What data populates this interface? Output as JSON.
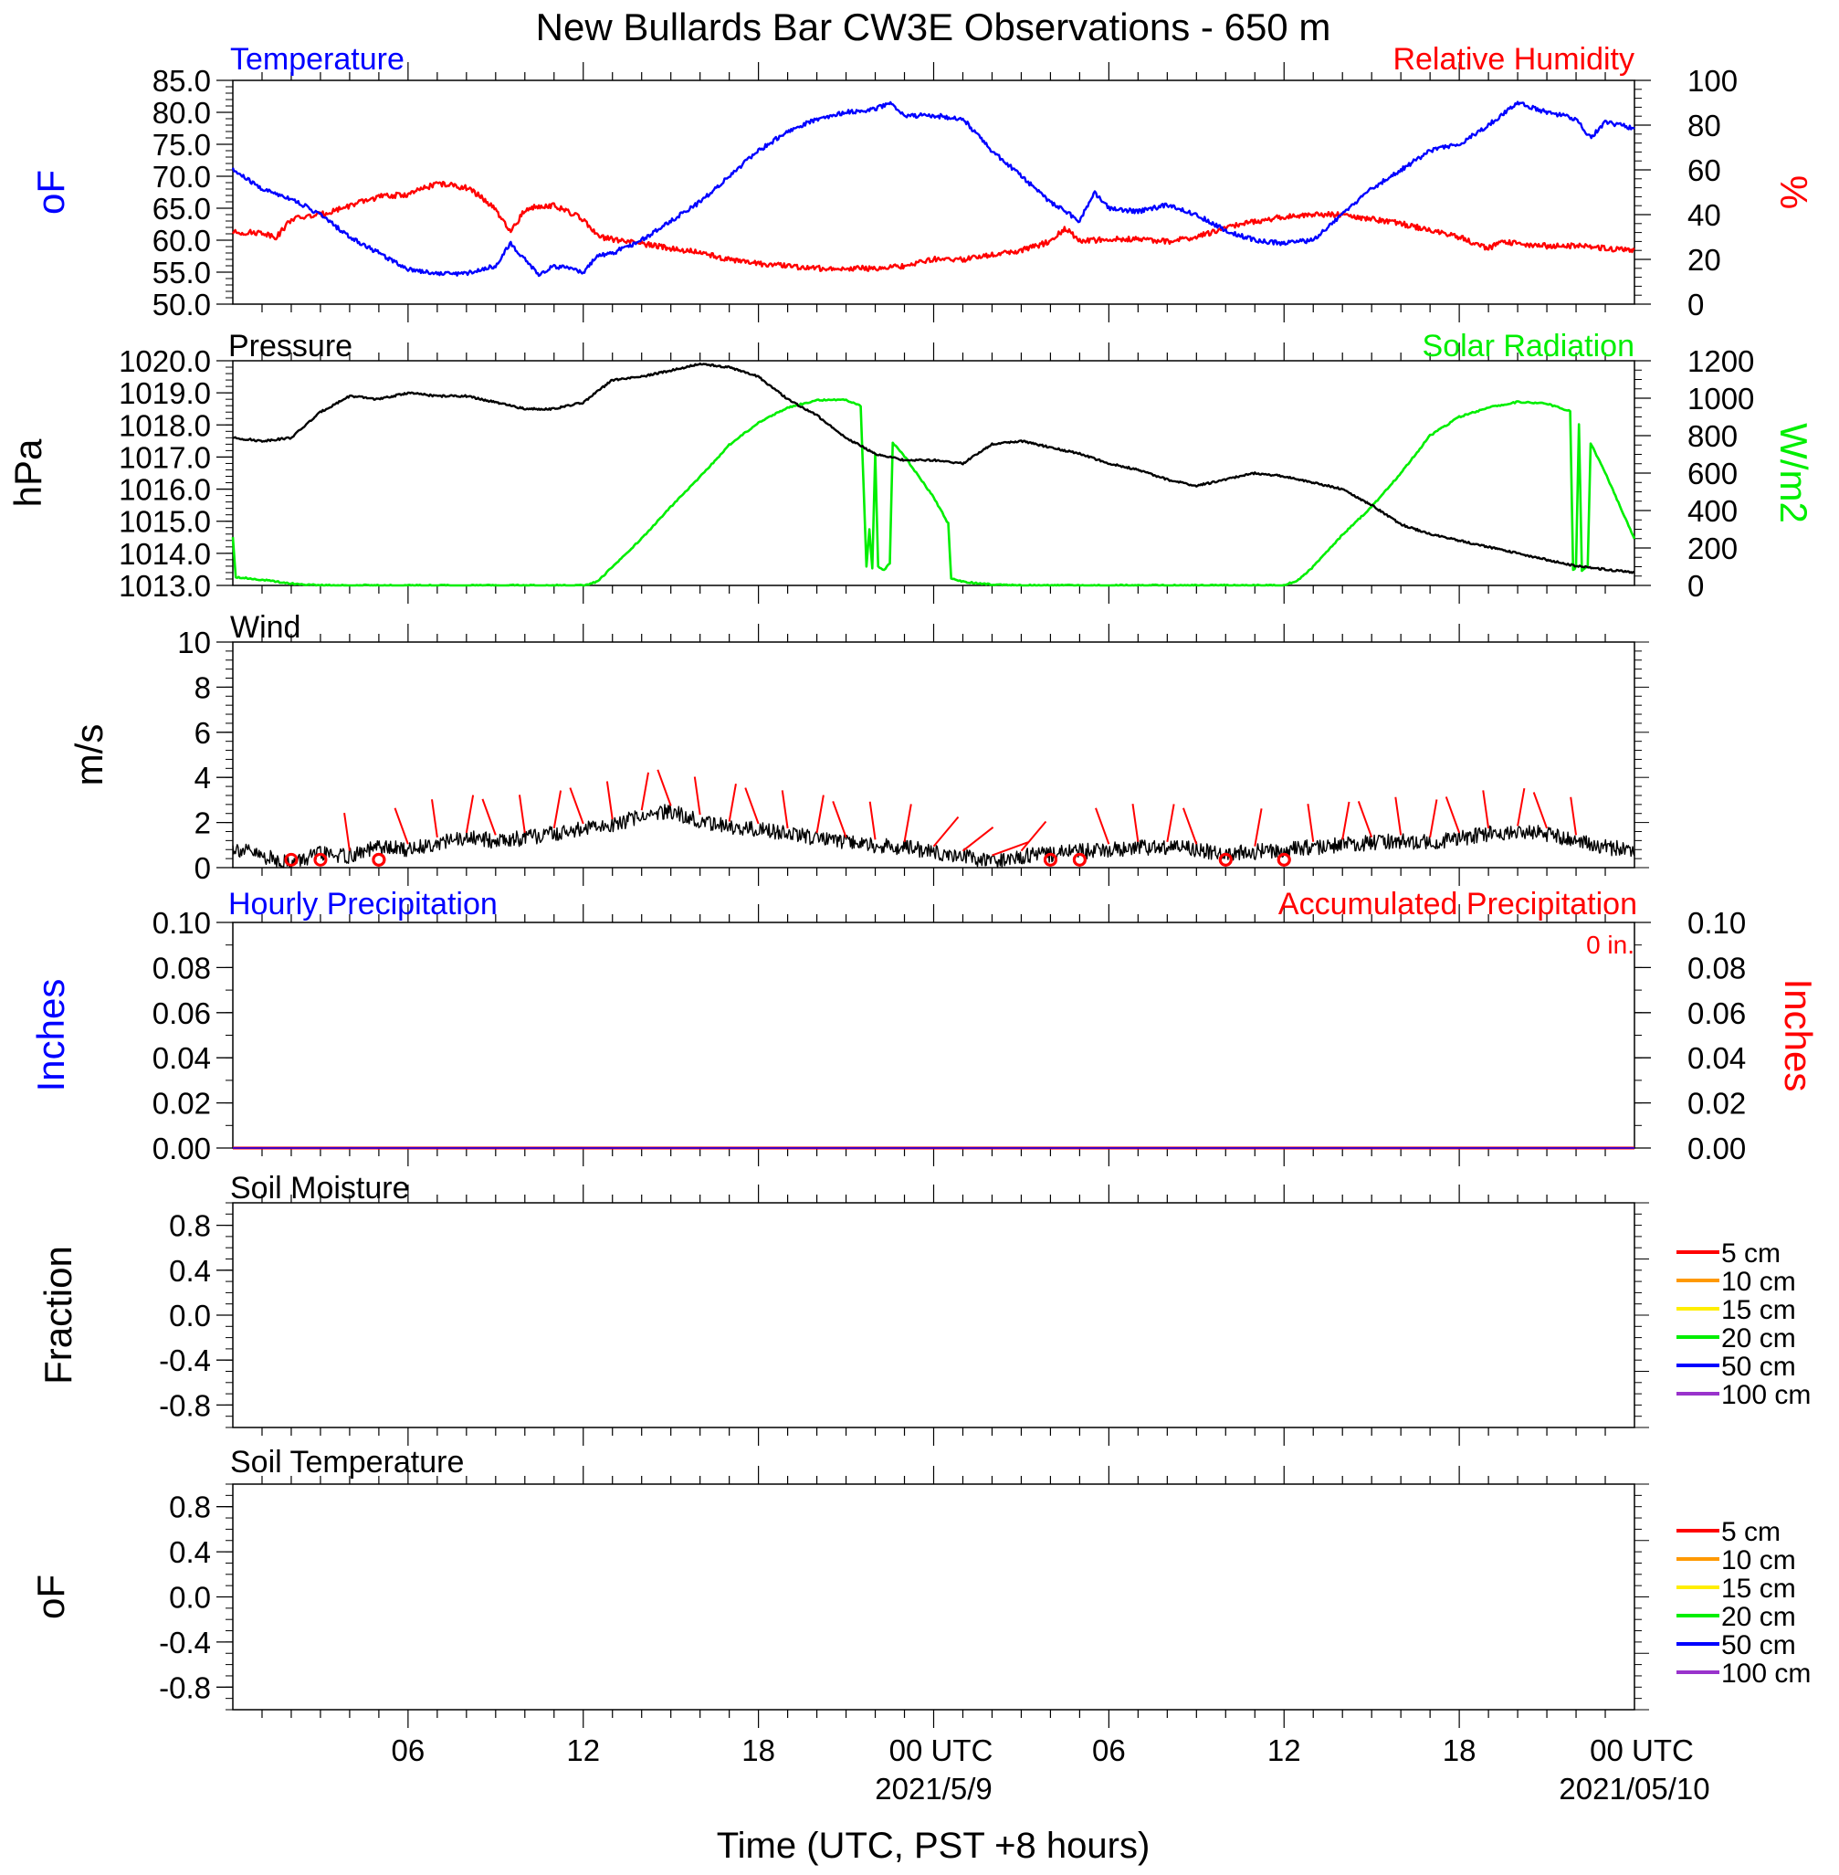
{
  "title": "New Bullards Bar CW3E Observations - 650 m",
  "xaxis": {
    "label": "Time (UTC, PST +8 hours)",
    "ticks": [
      "06",
      "12",
      "18",
      "00 UTC",
      "06",
      "12",
      "18",
      "00 UTC"
    ],
    "date_labels": [
      "2021/5/9",
      "2021/05/10"
    ]
  },
  "colors": {
    "temperature": "#0000ff",
    "humidity": "#ff0000",
    "pressure": "#000000",
    "solar": "#00ee00",
    "wind": "#000000",
    "barb": "#ff0000",
    "hourly_precip": "#0000ff",
    "accum_precip": "#ff0000"
  },
  "panels": {
    "temp_rh": {
      "left_label": "Temperature",
      "right_label": "Relative Humidity",
      "left_unit": "oF",
      "right_unit": "%",
      "left_ticks": [
        "85.0",
        "80.0",
        "75.0",
        "70.0",
        "65.0",
        "60.0",
        "55.0",
        "50.0"
      ],
      "right_ticks": [
        "100",
        "80",
        "60",
        "40",
        "20",
        "0"
      ]
    },
    "pressure_solar": {
      "left_label": "Pressure",
      "right_label": "Solar Radiation",
      "left_unit": "hPa",
      "right_unit": "W/m2",
      "left_ticks": [
        "1020.0",
        "1019.0",
        "1018.0",
        "1017.0",
        "1016.0",
        "1015.0",
        "1014.0",
        "1013.0"
      ],
      "right_ticks": [
        "1200",
        "1000",
        "800",
        "600",
        "400",
        "200",
        "0"
      ]
    },
    "wind": {
      "left_label": "Wind",
      "left_unit": "m/s",
      "left_ticks": [
        "10",
        "8",
        "6",
        "4",
        "2",
        "0"
      ]
    },
    "precip": {
      "left_label": "Hourly Precipitation",
      "right_label": "Accumulated Precipitation",
      "accum_note": "0 in.",
      "left_unit": "Inches",
      "right_unit": "Inches",
      "left_ticks": [
        "0.10",
        "0.08",
        "0.06",
        "0.04",
        "0.02",
        "0.00"
      ],
      "right_ticks": [
        "0.10",
        "0.08",
        "0.06",
        "0.04",
        "0.02",
        "0.00"
      ]
    },
    "soil_moisture": {
      "left_label": "Soil Moisture",
      "left_unit": "Fraction",
      "left_ticks": [
        "0.8",
        "0.4",
        "0.0",
        "-0.4",
        "-0.8"
      ],
      "legend": [
        {
          "label": "5 cm",
          "color": "#ff0000"
        },
        {
          "label": "10 cm",
          "color": "#ff9900"
        },
        {
          "label": "15 cm",
          "color": "#ffee00"
        },
        {
          "label": "20 cm",
          "color": "#00ee00"
        },
        {
          "label": "50 cm",
          "color": "#0000ff"
        },
        {
          "label": "100 cm",
          "color": "#9933cc"
        }
      ]
    },
    "soil_temp": {
      "left_label": "Soil Temperature",
      "left_unit": "oF",
      "left_ticks": [
        "0.8",
        "0.4",
        "0.0",
        "-0.4",
        "-0.8"
      ],
      "legend": [
        {
          "label": "5 cm",
          "color": "#ff0000"
        },
        {
          "label": "10 cm",
          "color": "#ff9900"
        },
        {
          "label": "15 cm",
          "color": "#ffee00"
        },
        {
          "label": "20 cm",
          "color": "#00ee00"
        },
        {
          "label": "50 cm",
          "color": "#0000ff"
        },
        {
          "label": "100 cm",
          "color": "#9933cc"
        }
      ]
    }
  },
  "chart_data": {
    "type": "line",
    "x_hours_utc": "2021-05-08 00 UTC to 2021-05-10 00 UTC",
    "temperature_F": [
      [
        0,
        71
      ],
      [
        1,
        68
      ],
      [
        2,
        66.5
      ],
      [
        3,
        64
      ],
      [
        4,
        60.5
      ],
      [
        5,
        58
      ],
      [
        6,
        55.5
      ],
      [
        7,
        54.8
      ],
      [
        8,
        54.8
      ],
      [
        9,
        56
      ],
      [
        9.5,
        59.5
      ],
      [
        10,
        57
      ],
      [
        10.5,
        54.5
      ],
      [
        11,
        56
      ],
      [
        12,
        55
      ],
      [
        12.5,
        57.5
      ],
      [
        13,
        58
      ],
      [
        14,
        60
      ],
      [
        15,
        63
      ],
      [
        16,
        66
      ],
      [
        17,
        70
      ],
      [
        18,
        74
      ],
      [
        19,
        77
      ],
      [
        20,
        79
      ],
      [
        21,
        80
      ],
      [
        22,
        80.5
      ],
      [
        22.5,
        81.5
      ],
      [
        23,
        79.5
      ],
      [
        24,
        79.5
      ],
      [
        25,
        79
      ],
      [
        26,
        74
      ],
      [
        27,
        70
      ],
      [
        28,
        66
      ],
      [
        29,
        63
      ],
      [
        29.5,
        67.5
      ],
      [
        30,
        65
      ],
      [
        31,
        64.5
      ],
      [
        32,
        65.5
      ],
      [
        33,
        64
      ],
      [
        34,
        61.5
      ],
      [
        35,
        60
      ],
      [
        36,
        59.5
      ],
      [
        37,
        60
      ],
      [
        38,
        64
      ],
      [
        39,
        68
      ],
      [
        40,
        71
      ],
      [
        41,
        74
      ],
      [
        42,
        75
      ],
      [
        43,
        78
      ],
      [
        44,
        81.5
      ],
      [
        45,
        80
      ],
      [
        46,
        79
      ],
      [
        46.5,
        76
      ],
      [
        47,
        78.5
      ],
      [
        48,
        77.5
      ]
    ],
    "relative_humidity_pct": [
      [
        0,
        32
      ],
      [
        1,
        32
      ],
      [
        1.5,
        30
      ],
      [
        2,
        38
      ],
      [
        3,
        40
      ],
      [
        4,
        44
      ],
      [
        5,
        48
      ],
      [
        6,
        49
      ],
      [
        7,
        54
      ],
      [
        8,
        52
      ],
      [
        8.5,
        48
      ],
      [
        9,
        42
      ],
      [
        9.5,
        32
      ],
      [
        10,
        42
      ],
      [
        10.5,
        44
      ],
      [
        11,
        44
      ],
      [
        12,
        38
      ],
      [
        12.5,
        30
      ],
      [
        13,
        29
      ],
      [
        14,
        27
      ],
      [
        15,
        25
      ],
      [
        16,
        23
      ],
      [
        17,
        20
      ],
      [
        18,
        18
      ],
      [
        19,
        17
      ],
      [
        20,
        16
      ],
      [
        21,
        16
      ],
      [
        22,
        16
      ],
      [
        23,
        17
      ],
      [
        24,
        20
      ],
      [
        25,
        20
      ],
      [
        26,
        22
      ],
      [
        27,
        24
      ],
      [
        28,
        28
      ],
      [
        28.5,
        34
      ],
      [
        29,
        28
      ],
      [
        30,
        29
      ],
      [
        31,
        29
      ],
      [
        32,
        28
      ],
      [
        33,
        30
      ],
      [
        34,
        34
      ],
      [
        35,
        37
      ],
      [
        36,
        39
      ],
      [
        37,
        40
      ],
      [
        38,
        40
      ],
      [
        39,
        38
      ],
      [
        40,
        36
      ],
      [
        41,
        33
      ],
      [
        42,
        30
      ],
      [
        43,
        25
      ],
      [
        43.5,
        28
      ],
      [
        44,
        27
      ],
      [
        45,
        26
      ],
      [
        46,
        26
      ],
      [
        47,
        25
      ],
      [
        48,
        24
      ]
    ],
    "pressure_hPa": [
      [
        0,
        1017.6
      ],
      [
        1,
        1017.5
      ],
      [
        2,
        1017.6
      ],
      [
        3,
        1018.4
      ],
      [
        4,
        1018.9
      ],
      [
        5,
        1018.8
      ],
      [
        6,
        1019.0
      ],
      [
        7,
        1018.9
      ],
      [
        8,
        1018.9
      ],
      [
        9,
        1018.7
      ],
      [
        10,
        1018.5
      ],
      [
        11,
        1018.5
      ],
      [
        12,
        1018.7
      ],
      [
        13,
        1019.4
      ],
      [
        14,
        1019.5
      ],
      [
        15,
        1019.7
      ],
      [
        16,
        1019.9
      ],
      [
        17,
        1019.8
      ],
      [
        18,
        1019.5
      ],
      [
        19,
        1018.8
      ],
      [
        20,
        1018.3
      ],
      [
        21,
        1017.6
      ],
      [
        22,
        1017.1
      ],
      [
        23,
        1016.9
      ],
      [
        24,
        1016.9
      ],
      [
        25,
        1016.8
      ],
      [
        26,
        1017.4
      ],
      [
        27,
        1017.5
      ],
      [
        28,
        1017.3
      ],
      [
        29,
        1017.1
      ],
      [
        30,
        1016.8
      ],
      [
        31,
        1016.6
      ],
      [
        32,
        1016.3
      ],
      [
        33,
        1016.1
      ],
      [
        34,
        1016.3
      ],
      [
        35,
        1016.5
      ],
      [
        36,
        1016.4
      ],
      [
        37,
        1016.2
      ],
      [
        38,
        1016.0
      ],
      [
        39,
        1015.5
      ],
      [
        40,
        1014.9
      ],
      [
        41,
        1014.6
      ],
      [
        42,
        1014.4
      ],
      [
        43,
        1014.2
      ],
      [
        44,
        1014.0
      ],
      [
        45,
        1013.8
      ],
      [
        46,
        1013.6
      ],
      [
        47,
        1013.5
      ],
      [
        48,
        1013.4
      ]
    ],
    "solar_radiation_Wm2": [
      [
        0,
        260
      ],
      [
        0.1,
        45
      ],
      [
        1,
        30
      ],
      [
        2,
        10
      ],
      [
        3,
        0
      ],
      [
        12,
        0
      ],
      [
        12.5,
        20
      ],
      [
        13,
        100
      ],
      [
        14,
        250
      ],
      [
        15,
        420
      ],
      [
        16,
        580
      ],
      [
        17,
        750
      ],
      [
        18,
        870
      ],
      [
        19,
        950
      ],
      [
        20,
        990
      ],
      [
        21,
        990
      ],
      [
        21.5,
        960
      ],
      [
        21.7,
        100
      ],
      [
        21.8,
        300
      ],
      [
        21.9,
        90
      ],
      [
        22,
        700
      ],
      [
        22.1,
        100
      ],
      [
        22.3,
        80
      ],
      [
        22.5,
        120
      ],
      [
        22.6,
        760
      ],
      [
        23,
        690
      ],
      [
        24,
        470
      ],
      [
        24.5,
        330
      ],
      [
        24.6,
        40
      ],
      [
        25,
        20
      ],
      [
        26,
        5
      ],
      [
        27,
        0
      ],
      [
        36,
        0
      ],
      [
        36.5,
        30
      ],
      [
        37,
        100
      ],
      [
        38,
        270
      ],
      [
        39,
        420
      ],
      [
        40,
        600
      ],
      [
        41,
        800
      ],
      [
        42,
        900
      ],
      [
        43,
        950
      ],
      [
        44,
        980
      ],
      [
        45,
        970
      ],
      [
        45.8,
        930
      ],
      [
        45.9,
        80
      ],
      [
        46,
        100
      ],
      [
        46.1,
        860
      ],
      [
        46.2,
        80
      ],
      [
        46.4,
        100
      ],
      [
        46.5,
        760
      ],
      [
        47,
        600
      ],
      [
        48,
        250
      ]
    ],
    "wind_speed_ms": [
      [
        0,
        0.9
      ],
      [
        1,
        0.5
      ],
      [
        2,
        0.2
      ],
      [
        3,
        0.6
      ],
      [
        4,
        0.5
      ],
      [
        5,
        0.9
      ],
      [
        6,
        0.8
      ],
      [
        7,
        1.1
      ],
      [
        8,
        1.3
      ],
      [
        9,
        1.2
      ],
      [
        10,
        1.3
      ],
      [
        11,
        1.5
      ],
      [
        12,
        1.7
      ],
      [
        13,
        1.9
      ],
      [
        14,
        2.3
      ],
      [
        15,
        2.5
      ],
      [
        16,
        2.1
      ],
      [
        17,
        1.8
      ],
      [
        18,
        1.7
      ],
      [
        19,
        1.5
      ],
      [
        20,
        1.3
      ],
      [
        21,
        1.1
      ],
      [
        22,
        1.0
      ],
      [
        23,
        0.9
      ],
      [
        24,
        0.7
      ],
      [
        25,
        0.5
      ],
      [
        26,
        0.3
      ],
      [
        27,
        0.5
      ],
      [
        28,
        0.6
      ],
      [
        29,
        0.7
      ],
      [
        30,
        0.8
      ],
      [
        31,
        0.9
      ],
      [
        32,
        0.9
      ],
      [
        33,
        0.8
      ],
      [
        34,
        0.6
      ],
      [
        35,
        0.7
      ],
      [
        36,
        0.8
      ],
      [
        37,
        0.9
      ],
      [
        38,
        1.0
      ],
      [
        39,
        1.1
      ],
      [
        40,
        1.2
      ],
      [
        41,
        1.1
      ],
      [
        42,
        1.3
      ],
      [
        43,
        1.5
      ],
      [
        44,
        1.6
      ],
      [
        45,
        1.5
      ],
      [
        46,
        1.2
      ],
      [
        47,
        0.9
      ],
      [
        48,
        0.8
      ]
    ],
    "hourly_precip_in": [
      [
        0,
        0
      ],
      [
        48,
        0
      ]
    ],
    "accum_precip_in": [
      [
        0,
        0
      ],
      [
        48,
        0
      ]
    ],
    "xlim": [
      0,
      48
    ],
    "temp_ylim": [
      50,
      85
    ],
    "rh_ylim": [
      0,
      100
    ],
    "pressure_ylim": [
      1013,
      1020
    ],
    "solar_ylim": [
      0,
      1200
    ],
    "wind_ylim": [
      0,
      10
    ],
    "precip_ylim": [
      0,
      0.1
    ],
    "soil_ylim": [
      -1,
      1
    ]
  }
}
